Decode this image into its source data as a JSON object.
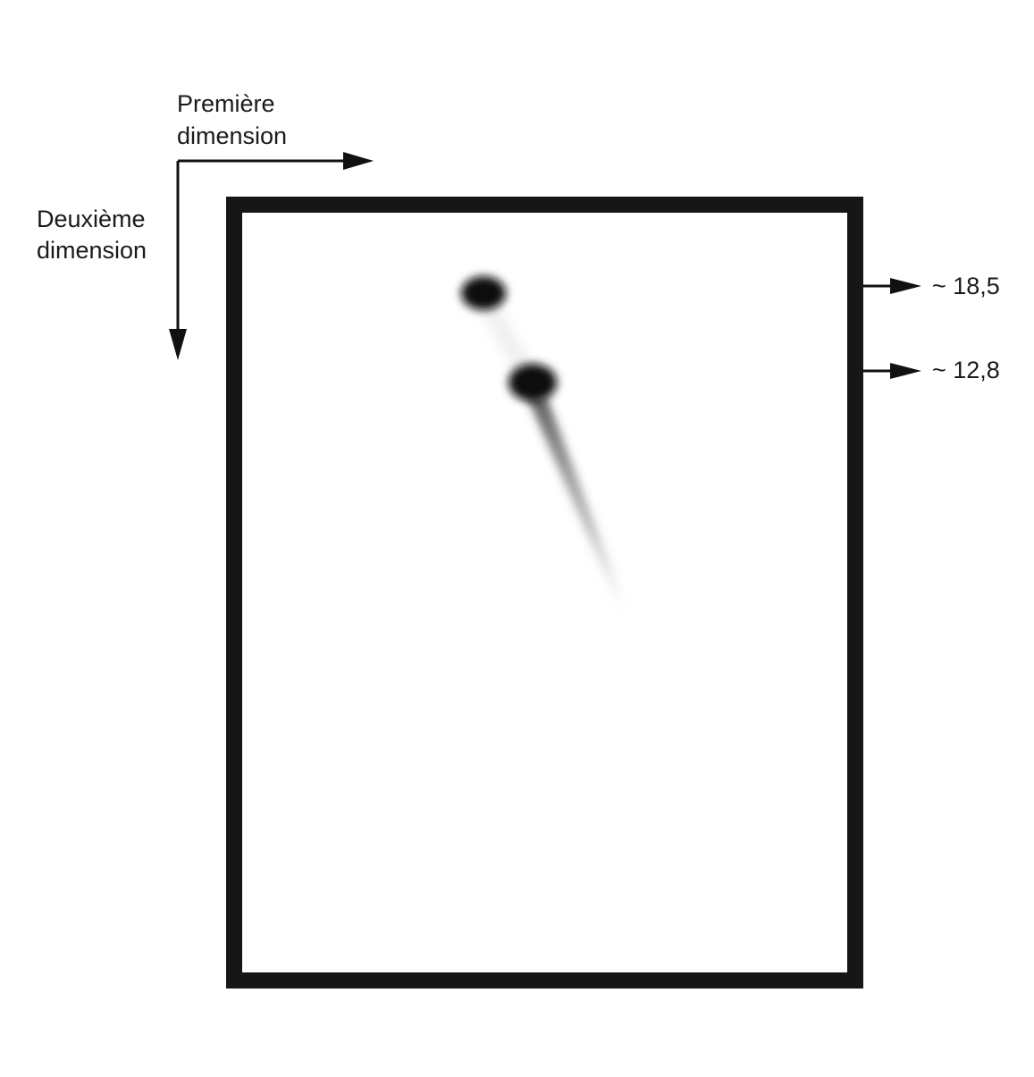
{
  "axes": {
    "first": [
      "Première",
      "dimension"
    ],
    "second": [
      "Deuxième",
      "dimension"
    ]
  },
  "markers": [
    {
      "label": "~ 18,5"
    },
    {
      "label": "~ 12,8"
    }
  ]
}
